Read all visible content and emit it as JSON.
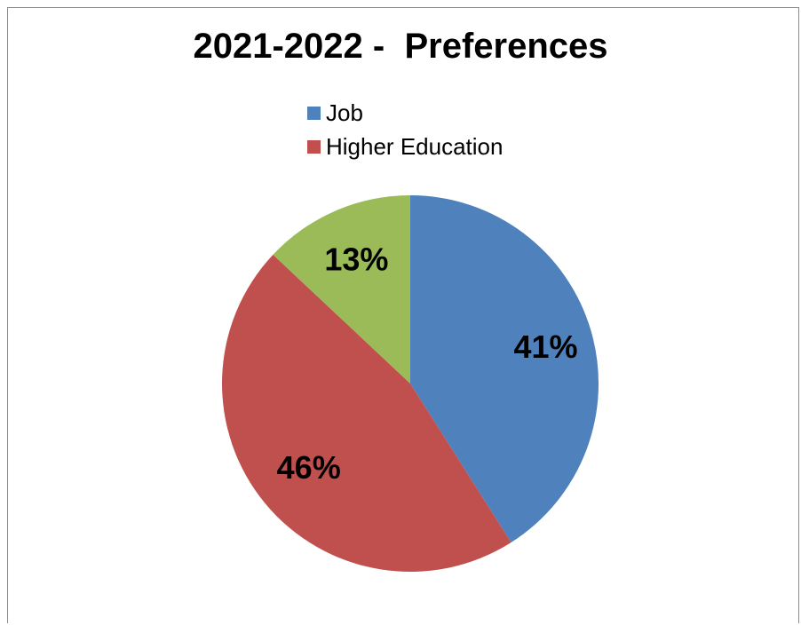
{
  "chart_data": {
    "type": "pie",
    "title": "2021-2022 -  Preferences",
    "legend_position": "top",
    "slices": [
      {
        "name": "Job",
        "value": 41,
        "label": "41%",
        "color": "#4f81bd",
        "in_legend": true
      },
      {
        "name": "Higher Education",
        "value": 46,
        "label": "46%",
        "color": "#c0504d",
        "in_legend": true
      },
      {
        "name": "",
        "value": 13,
        "label": "13%",
        "color": "#9bbb59",
        "in_legend": false
      }
    ]
  }
}
